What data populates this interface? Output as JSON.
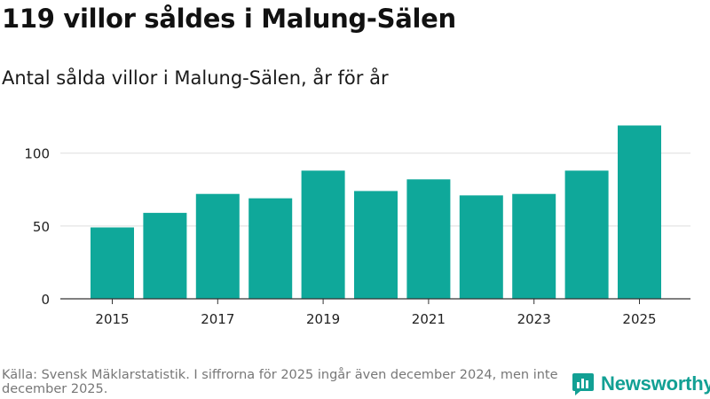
{
  "header": {
    "title": "119 villor såldes i Malung-Sälen",
    "subtitle": "Antal sålda villor i Malung-Sälen, år för år"
  },
  "chart_data": {
    "type": "bar",
    "categories": [
      "2015",
      "2016",
      "2017",
      "2018",
      "2019",
      "2020",
      "2021",
      "2022",
      "2023",
      "2024",
      "2025"
    ],
    "values": [
      49,
      59,
      72,
      69,
      88,
      74,
      82,
      71,
      72,
      88,
      119
    ],
    "x_tick_labels": [
      "2015",
      "2017",
      "2019",
      "2021",
      "2023",
      "2025"
    ],
    "y_ticks": [
      0,
      50,
      100
    ],
    "ylim": [
      0,
      126
    ],
    "bar_color": "#0fa89a",
    "grid": true,
    "xlabel": "",
    "ylabel": ""
  },
  "footer": {
    "source": "Källa: Svensk Mäklarstatistik. I siffrorna för 2025 ingår även december 2024, men inte december 2025."
  },
  "brand": {
    "name": "Newsworthy",
    "color": "#12a094",
    "icon": "newsworthy-logo-icon"
  }
}
